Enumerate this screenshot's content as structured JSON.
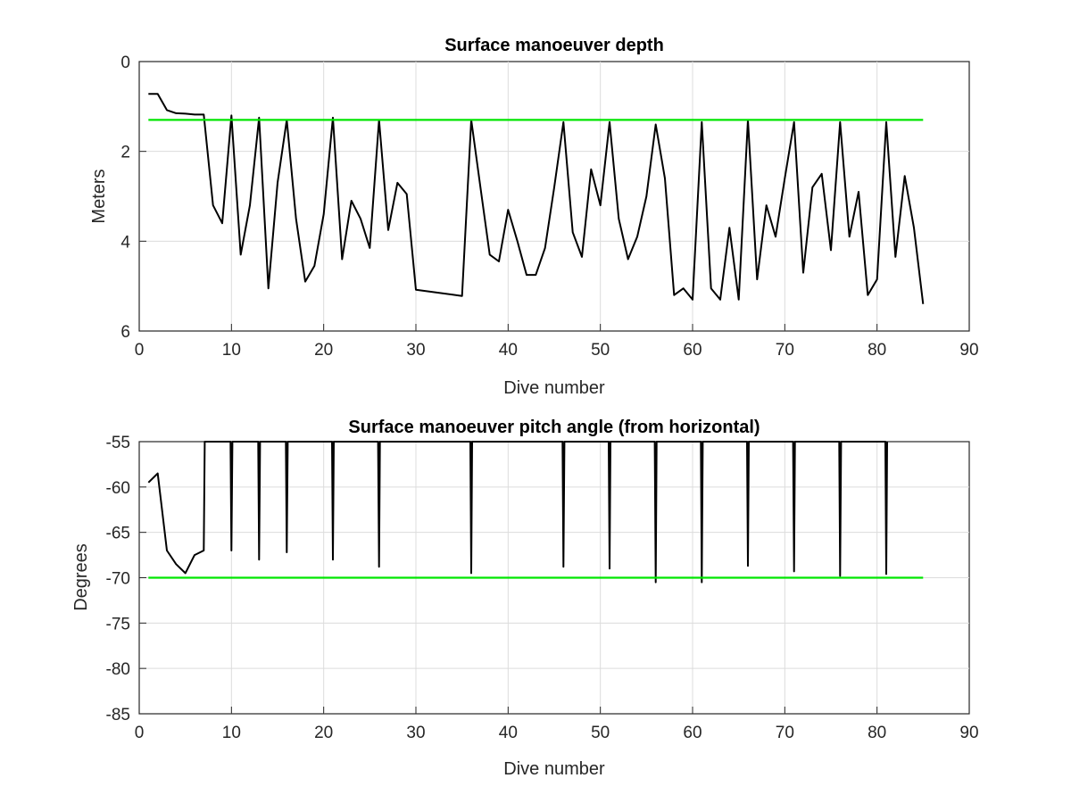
{
  "chart_data": [
    {
      "type": "line",
      "title": "Surface manoeuver depth",
      "xlabel": "Dive number",
      "ylabel": "Meters",
      "xlim": [
        0,
        90
      ],
      "ylim": [
        0,
        6
      ],
      "y_reversed": true,
      "xticks": [
        0,
        10,
        20,
        30,
        40,
        50,
        60,
        70,
        80,
        90
      ],
      "yticks": [
        0,
        2,
        4,
        6
      ],
      "grid": true,
      "series": [
        {
          "color": "#000000",
          "points": [
            [
              1,
              0.72
            ],
            [
              2,
              0.72
            ],
            [
              3,
              1.08
            ],
            [
              4,
              1.15
            ],
            [
              5,
              1.16
            ],
            [
              6,
              1.18
            ],
            [
              7,
              1.18
            ],
            [
              8,
              3.2
            ],
            [
              9,
              3.6
            ],
            [
              10,
              1.2
            ],
            [
              11,
              4.3
            ],
            [
              12,
              3.2
            ],
            [
              13,
              1.25
            ],
            [
              14,
              5.05
            ],
            [
              15,
              2.7
            ],
            [
              16,
              1.3
            ],
            [
              17,
              3.5
            ],
            [
              18,
              4.9
            ],
            [
              19,
              4.55
            ],
            [
              20,
              3.4
            ],
            [
              21,
              1.25
            ],
            [
              22,
              4.4
            ],
            [
              23,
              3.1
            ],
            [
              24,
              3.5
            ],
            [
              25,
              4.15
            ],
            [
              26,
              1.3
            ],
            [
              27,
              3.75
            ],
            [
              28,
              2.7
            ],
            [
              29,
              2.95
            ],
            [
              30,
              5.08
            ],
            [
              35,
              5.22
            ],
            [
              36,
              1.3
            ],
            [
              37,
              2.8
            ],
            [
              38,
              4.3
            ],
            [
              39,
              4.45
            ],
            [
              40,
              3.3
            ],
            [
              41,
              4.0
            ],
            [
              42,
              4.75
            ],
            [
              43,
              4.75
            ],
            [
              44,
              4.15
            ],
            [
              45,
              2.8
            ],
            [
              46,
              1.35
            ],
            [
              47,
              3.8
            ],
            [
              48,
              4.35
            ],
            [
              49,
              2.4
            ],
            [
              50,
              3.2
            ],
            [
              51,
              1.35
            ],
            [
              52,
              3.5
            ],
            [
              53,
              4.4
            ],
            [
              54,
              3.9
            ],
            [
              55,
              3.0
            ],
            [
              56,
              1.4
            ],
            [
              57,
              2.6
            ],
            [
              58,
              5.2
            ],
            [
              59,
              5.05
            ],
            [
              60,
              5.3
            ],
            [
              61,
              1.35
            ],
            [
              62,
              5.05
            ],
            [
              63,
              5.3
            ],
            [
              64,
              3.7
            ],
            [
              65,
              5.3
            ],
            [
              66,
              1.3
            ],
            [
              67,
              4.85
            ],
            [
              68,
              3.2
            ],
            [
              69,
              3.9
            ],
            [
              70,
              2.6
            ],
            [
              71,
              1.35
            ],
            [
              72,
              4.7
            ],
            [
              73,
              2.8
            ],
            [
              74,
              2.5
            ],
            [
              75,
              4.2
            ],
            [
              76,
              1.35
            ],
            [
              77,
              3.9
            ],
            [
              78,
              2.9
            ],
            [
              79,
              5.2
            ],
            [
              80,
              4.85
            ],
            [
              81,
              1.35
            ],
            [
              82,
              4.35
            ],
            [
              83,
              2.55
            ],
            [
              84,
              3.7
            ],
            [
              85,
              5.4
            ]
          ]
        },
        {
          "color": "#00e600",
          "points": [
            [
              1,
              1.3
            ],
            [
              85,
              1.3
            ]
          ]
        }
      ]
    },
    {
      "type": "line",
      "title": "Surface manoeuver pitch angle (from horizontal)",
      "xlabel": "Dive number",
      "ylabel": "Degrees",
      "xlim": [
        0,
        90
      ],
      "ylim": [
        -85,
        -55
      ],
      "y_reversed": false,
      "xticks": [
        0,
        10,
        20,
        30,
        40,
        50,
        60,
        70,
        80,
        90
      ],
      "yticks": [
        -55,
        -60,
        -65,
        -70,
        -75,
        -80,
        -85
      ],
      "grid": true,
      "series": [
        {
          "color": "#000000",
          "points": [
            [
              1,
              -59.5
            ],
            [
              2,
              -58.5
            ],
            [
              3,
              -67
            ],
            [
              4,
              -68.5
            ],
            [
              5,
              -69.5
            ],
            [
              6,
              -67.5
            ],
            [
              7,
              -67
            ],
            [
              7.1,
              -55
            ],
            [
              9.9,
              -55
            ],
            [
              10,
              -67
            ],
            [
              10.1,
              -55
            ],
            [
              12.9,
              -55
            ],
            [
              13,
              -68
            ],
            [
              13.1,
              -55
            ],
            [
              15.9,
              -55
            ],
            [
              16,
              -67.2
            ],
            [
              16.1,
              -55
            ],
            [
              20.9,
              -55
            ],
            [
              21,
              -68
            ],
            [
              21.1,
              -55
            ],
            [
              25.9,
              -55
            ],
            [
              26,
              -68.8
            ],
            [
              26.1,
              -55
            ],
            [
              35.9,
              -55
            ],
            [
              36,
              -69.5
            ],
            [
              36.1,
              -55
            ],
            [
              45.9,
              -55
            ],
            [
              46,
              -68.8
            ],
            [
              46.1,
              -55
            ],
            [
              50.9,
              -55
            ],
            [
              51,
              -69
            ],
            [
              51.1,
              -55
            ],
            [
              55.9,
              -55
            ],
            [
              56,
              -70.5
            ],
            [
              56.1,
              -55
            ],
            [
              60.9,
              -55
            ],
            [
              61,
              -70.5
            ],
            [
              61.1,
              -55
            ],
            [
              65.9,
              -55
            ],
            [
              66,
              -68.7
            ],
            [
              66.1,
              -55
            ],
            [
              70.9,
              -55
            ],
            [
              71,
              -69.3
            ],
            [
              71.1,
              -55
            ],
            [
              75.9,
              -55
            ],
            [
              76,
              -69.8
            ],
            [
              76.1,
              -55
            ],
            [
              80.9,
              -55
            ],
            [
              81,
              -69.6
            ],
            [
              81.1,
              -55
            ]
          ]
        },
        {
          "color": "#00e600",
          "points": [
            [
              1,
              -70
            ],
            [
              85,
              -70
            ]
          ]
        }
      ]
    }
  ]
}
